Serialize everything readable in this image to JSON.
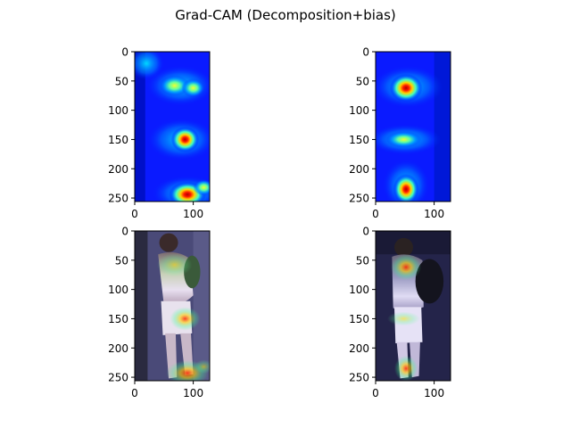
{
  "figure": {
    "title": "Grad-CAM (Decomposition+bias)"
  },
  "chart_data": [
    {
      "type": "heatmap",
      "content": "Grad-CAM heatmap (jet colormap), person 1",
      "xlim": [
        0,
        128
      ],
      "ylim": [
        256,
        0
      ],
      "x_ticks": [
        0,
        100
      ],
      "y_ticks": [
        0,
        50,
        100,
        150,
        200,
        250
      ],
      "x_tick_labels": [
        "0",
        "100"
      ],
      "y_tick_labels": [
        "0",
        "50",
        "100",
        "150",
        "200",
        "250"
      ],
      "hotspots": [
        {
          "x": 85,
          "y": 150,
          "intensity": 1.0
        },
        {
          "x": 90,
          "y": 245,
          "intensity": 1.0
        },
        {
          "x": 65,
          "y": 55,
          "intensity": 0.6
        },
        {
          "x": 95,
          "y": 60,
          "intensity": 0.5
        }
      ]
    },
    {
      "type": "heatmap",
      "content": "Grad-CAM heatmap (jet colormap), person 2",
      "xlim": [
        0,
        128
      ],
      "ylim": [
        256,
        0
      ],
      "x_ticks": [
        0,
        100
      ],
      "y_ticks": [
        0,
        50,
        100,
        150,
        200,
        250
      ],
      "x_tick_labels": [
        "0",
        "100"
      ],
      "y_tick_labels": [
        "0",
        "50",
        "100",
        "150",
        "200",
        "250"
      ],
      "hotspots": [
        {
          "x": 52,
          "y": 62,
          "intensity": 1.0
        },
        {
          "x": 52,
          "y": 235,
          "intensity": 1.0
        },
        {
          "x": 48,
          "y": 150,
          "intensity": 0.8
        }
      ]
    },
    {
      "type": "heatmap",
      "content": "Grad-CAM overlay on pedestrian image, person 1",
      "xlim": [
        0,
        128
      ],
      "ylim": [
        256,
        0
      ],
      "x_ticks": [
        0,
        100
      ],
      "y_ticks": [
        0,
        50,
        100,
        150,
        200,
        250
      ],
      "x_tick_labels": [
        "0",
        "100"
      ],
      "y_tick_labels": [
        "0",
        "50",
        "100",
        "150",
        "200",
        "250"
      ]
    },
    {
      "type": "heatmap",
      "content": "Grad-CAM overlay on pedestrian image, person 2",
      "xlim": [
        0,
        128
      ],
      "ylim": [
        256,
        0
      ],
      "x_ticks": [
        0,
        100
      ],
      "y_ticks": [
        0,
        50,
        100,
        150,
        200,
        250
      ],
      "x_tick_labels": [
        "0",
        "100"
      ],
      "y_tick_labels": [
        "0",
        "50",
        "100",
        "150",
        "200",
        "250"
      ]
    }
  ],
  "colors": {
    "jet_low": "#00007f",
    "jet_blue": "#0020ff",
    "jet_cyan": "#00d4ff",
    "jet_yellow": "#ffe600",
    "jet_red": "#e01000",
    "overlay_bg": "#3a3a68"
  }
}
